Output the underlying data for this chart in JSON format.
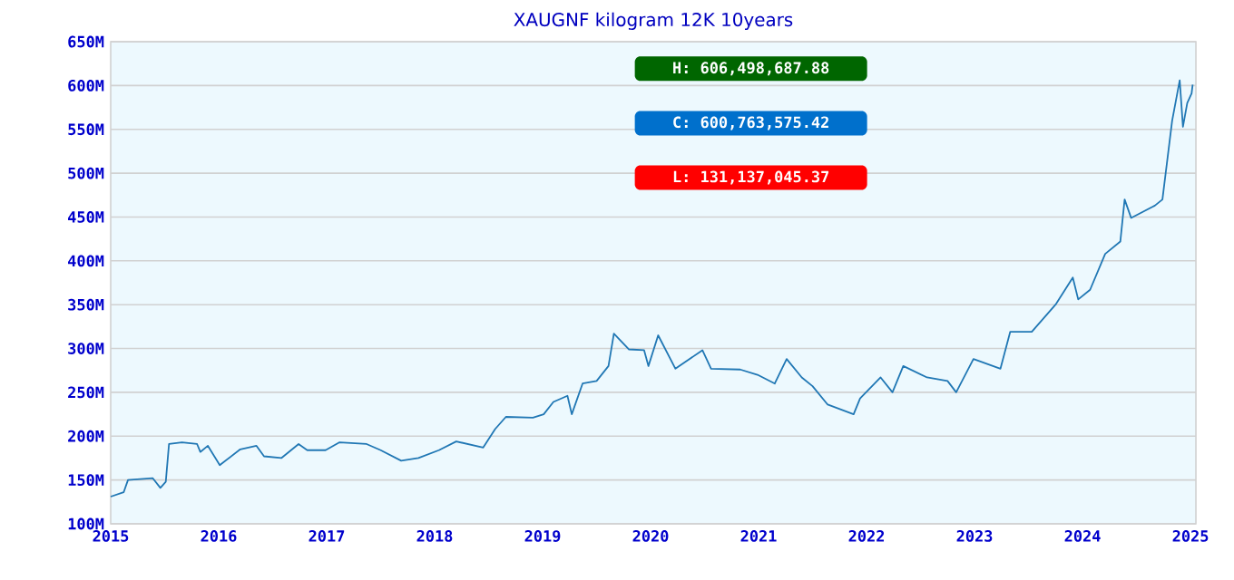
{
  "chart_data": {
    "type": "line",
    "title": "XAUGNF kilogram 12K 10years",
    "x": [
      2015.0,
      2015.12,
      2015.16,
      2015.39,
      2015.46,
      2015.51,
      2015.54,
      2015.66,
      2015.8,
      2015.83,
      2015.9,
      2016.01,
      2016.2,
      2016.35,
      2016.42,
      2016.58,
      2016.74,
      2016.82,
      2016.99,
      2017.12,
      2017.37,
      2017.5,
      2017.69,
      2017.85,
      2018.04,
      2018.2,
      2018.45,
      2018.56,
      2018.66,
      2018.91,
      2019.01,
      2019.1,
      2019.23,
      2019.27,
      2019.37,
      2019.5,
      2019.61,
      2019.66,
      2019.8,
      2019.94,
      2019.98,
      2020.07,
      2020.23,
      2020.48,
      2020.56,
      2020.83,
      2020.99,
      2021.15,
      2021.26,
      2021.4,
      2021.5,
      2021.64,
      2021.88,
      2021.94,
      2022.13,
      2022.24,
      2022.34,
      2022.56,
      2022.75,
      2022.83,
      2022.99,
      2023.24,
      2023.33,
      2023.53,
      2023.75,
      2023.91,
      2023.96,
      2024.07,
      2024.21,
      2024.35,
      2024.39,
      2024.45,
      2024.67,
      2024.74,
      2024.83,
      2024.9,
      2024.93,
      2024.97,
      2025.01,
      2025.02
    ],
    "series": [
      {
        "color": "#2077b4",
        "values": [
          131,
          136,
          150,
          152,
          141,
          148,
          191,
          193,
          191,
          182,
          189,
          167,
          185,
          189,
          177,
          175,
          191,
          184,
          184,
          193,
          191,
          184,
          172,
          175,
          184,
          194,
          187,
          208,
          222,
          221,
          225,
          239,
          246,
          225,
          260,
          263,
          280,
          317,
          299,
          298,
          280,
          315,
          277,
          298,
          277,
          276,
          270,
          260,
          288,
          267,
          257,
          236,
          225,
          243,
          267,
          250,
          280,
          267,
          263,
          250,
          288,
          277,
          319,
          319,
          350,
          381,
          356,
          367,
          408,
          422,
          470,
          449,
          463,
          470,
          560,
          606,
          553,
          580,
          591,
          601
        ]
      }
    ],
    "xlim": [
      2015,
      2025.05
    ],
    "ylim": [
      100,
      650
    ],
    "xticks": [
      2015,
      2016,
      2017,
      2018,
      2019,
      2020,
      2021,
      2022,
      2023,
      2024,
      2025
    ],
    "yticks": [
      {
        "value": 100,
        "label": "100M"
      },
      {
        "value": 150,
        "label": "150M"
      },
      {
        "value": 200,
        "label": "200M"
      },
      {
        "value": 250,
        "label": "250M"
      },
      {
        "value": 300,
        "label": "300M"
      },
      {
        "value": 350,
        "label": "350M"
      },
      {
        "value": 400,
        "label": "400M"
      },
      {
        "value": 450,
        "label": "450M"
      },
      {
        "value": 500,
        "label": "500M"
      },
      {
        "value": 550,
        "label": "550M"
      },
      {
        "value": 600,
        "label": "600M"
      },
      {
        "value": 650,
        "label": "650M"
      }
    ],
    "grid": "y",
    "marker": "none",
    "line_style": "solid",
    "annotations": [
      "H: 606,498,687.88",
      "C: 600,763,575.42",
      "L: 131,137,045.37"
    ]
  }
}
